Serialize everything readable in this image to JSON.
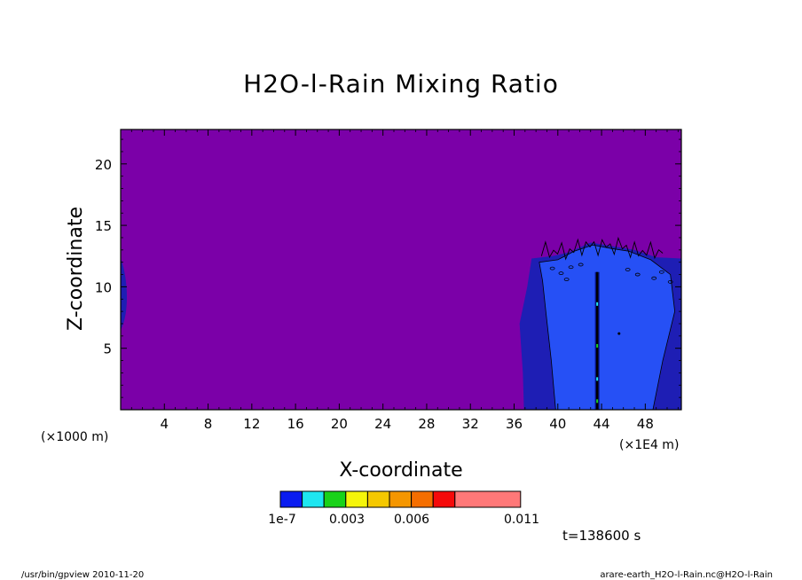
{
  "chart_data": {
    "type": "heatmap",
    "title": "H2O-l-Rain Mixing Ratio",
    "xlabel": "X-coordinate",
    "ylabel": "Z-coordinate",
    "x_unit_note": "(×1E4 m)",
    "z_unit_note": "(×1000 m)",
    "xlim": [
      0,
      51.3
    ],
    "ylim": [
      0,
      22.8
    ],
    "x_ticks": [
      4,
      8,
      12,
      16,
      20,
      24,
      28,
      32,
      36,
      40,
      44,
      48
    ],
    "x_tick_labels": [
      "4",
      "8",
      "12",
      "16",
      "20",
      "24",
      "28",
      "32",
      "36",
      "40",
      "44",
      "48"
    ],
    "y_ticks": [
      5,
      10,
      15,
      20
    ],
    "y_tick_labels": [
      "5",
      "10",
      "15",
      "20"
    ],
    "background_color": "#7B00A8",
    "level_colors": [
      "#0A1CF0",
      "#1EE6F0",
      "#19D219",
      "#F5F50A",
      "#F5C800",
      "#F59600",
      "#F56E00",
      "#F50A0A",
      "#FF7878"
    ],
    "contour_colors": {
      "outer": "#1E1EB4",
      "inner": "#2650F5",
      "core": "#0A1CF0"
    },
    "colorbar_labels": [
      {
        "text": "1e-7",
        "value": 1e-07
      },
      {
        "text": "0.003",
        "value": 0.003
      },
      {
        "text": "0.006",
        "value": 0.006
      },
      {
        "text": "0.011",
        "value": 0.011
      }
    ],
    "time_label": "t=138600 s"
  },
  "footer": {
    "left": "/usr/bin/gpview   2010-11-20",
    "right": "arare-earth_H2O-l-Rain.nc@H2O-l-Rain"
  }
}
